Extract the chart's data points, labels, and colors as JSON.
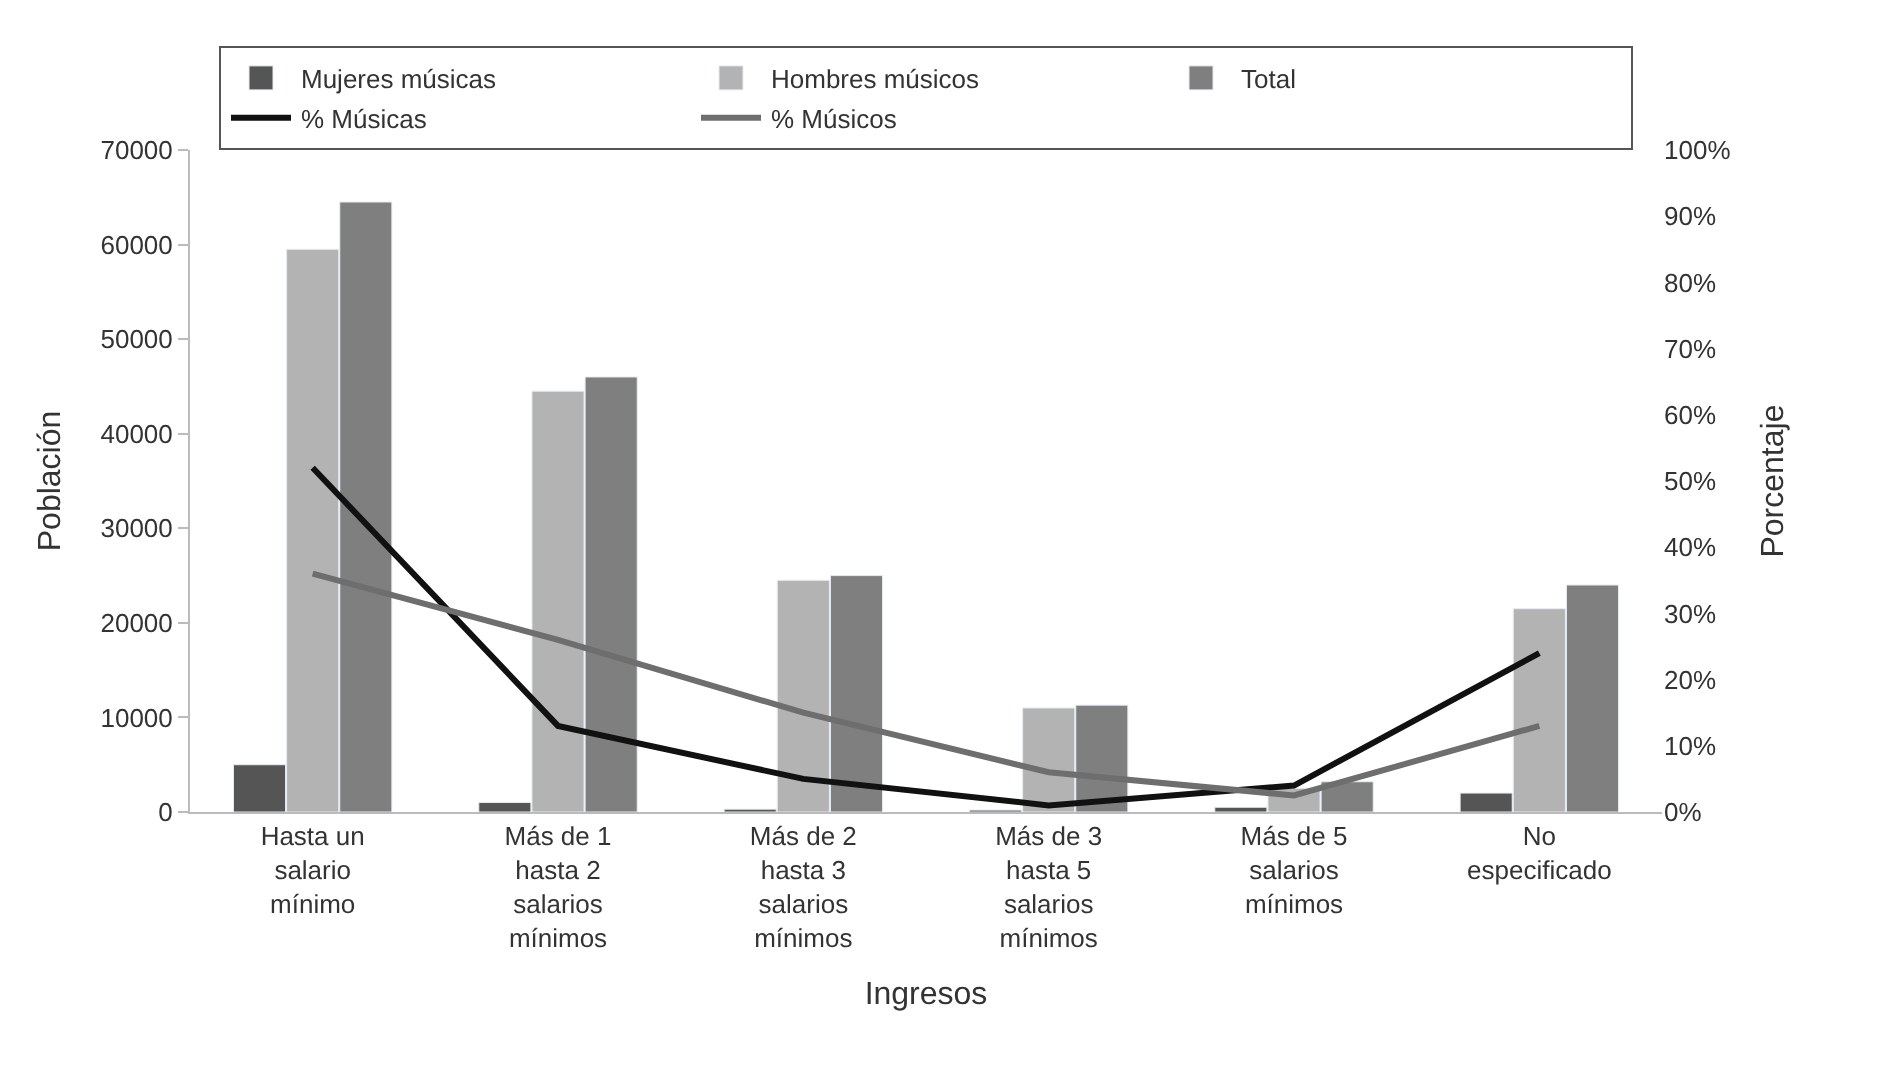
{
  "chart_data": {
    "type": "bar",
    "xlabel": "Ingresos",
    "ylabel": "Población",
    "y2label": "Porcentaje",
    "categories": [
      "Hasta un salario mínimo",
      "Más de 1 hasta 2 salarios mínimos",
      "Más de 2 hasta 3 salarios mínimos",
      "Más de 3 hasta 5 salarios mínimos",
      "Más de 5 salarios mínimos",
      "No especificado"
    ],
    "series": [
      {
        "name": "Mujeres músicas",
        "color": "#555555",
        "values": [
          5000,
          1000,
          300,
          200,
          500,
          2000
        ]
      },
      {
        "name": "Hombres músicos",
        "color": "#b3b3b3",
        "values": [
          59500,
          44500,
          24500,
          11000,
          2500,
          21500
        ]
      },
      {
        "name": "Total",
        "color": "#7f7f7f",
        "values": [
          64500,
          46000,
          25000,
          11300,
          3200,
          24000
        ]
      },
      {
        "name": "% Músicas",
        "type": "line",
        "axis": "y2",
        "color": "#111111",
        "values": [
          52,
          13,
          5,
          1,
          4,
          24
        ]
      },
      {
        "name": "% Músicos",
        "type": "line",
        "axis": "y2",
        "color": "#6e6e6e",
        "values": [
          36,
          26,
          15,
          6,
          2.5,
          13
        ]
      }
    ],
    "ylim": [
      0,
      70000
    ],
    "yticks": [
      0,
      10000,
      20000,
      30000,
      40000,
      50000,
      60000,
      70000
    ],
    "y2lim": [
      0,
      100
    ],
    "y2ticks": [
      {
        "value": 0,
        "label": "0%"
      },
      {
        "value": 10,
        "label": "10%"
      },
      {
        "value": 20,
        "label": "20%"
      },
      {
        "value": 30,
        "label": "30%"
      },
      {
        "value": 40,
        "label": "40%"
      },
      {
        "value": 50,
        "label": "50%"
      },
      {
        "value": 60,
        "label": "60%"
      },
      {
        "value": 70,
        "label": "70%"
      },
      {
        "value": 80,
        "label": "80%"
      },
      {
        "value": 90,
        "label": "90%"
      },
      {
        "value": 100,
        "label": "100%"
      }
    ],
    "legend": "top",
    "marker": "none",
    "line_style": "solid"
  }
}
